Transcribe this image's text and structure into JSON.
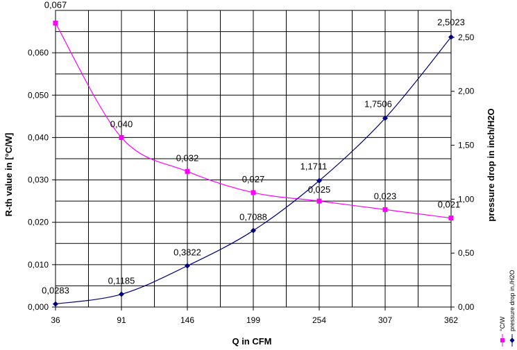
{
  "chart_data": {
    "type": "line",
    "xlabel": "Q in CFM",
    "ylabel_left": "R-th value in [°C/W]",
    "ylabel_right": "pressure drop in inch/H2O",
    "categories": [
      "36",
      "91",
      "146",
      "199",
      "254",
      "307",
      "362"
    ],
    "y_left": {
      "ylim": [
        0,
        0.07
      ],
      "ticks": [
        "0,000",
        "0,010",
        "0,020",
        "0,030",
        "0,040",
        "0,050",
        "0,060"
      ],
      "tick_values": [
        0,
        0.01,
        0.02,
        0.03,
        0.04,
        0.05,
        0.06
      ]
    },
    "y_right": {
      "ylim": [
        0,
        2.75
      ],
      "ticks": [
        "0,00",
        "0,50",
        "1,00",
        "1,50",
        "2,00",
        "2,50"
      ],
      "tick_values": [
        0,
        0.5,
        1.0,
        1.5,
        2.0,
        2.5
      ]
    },
    "grid": true,
    "legend_position": "right",
    "series": [
      {
        "name": "°C/W",
        "axis": "left",
        "color": "#ff00ff",
        "marker": "square",
        "values": [
          0.067,
          0.04,
          0.032,
          0.027,
          0.025,
          0.023,
          0.021
        ],
        "labels": [
          "0,067",
          "0,040",
          "0,032",
          "0,027",
          "0,025",
          "0,023",
          "0,021"
        ]
      },
      {
        "name": "pressure drop in./H2O",
        "axis": "right",
        "color": "#000080",
        "marker": "diamond",
        "values": [
          0.0283,
          0.1185,
          0.3822,
          0.7088,
          1.1711,
          1.7506,
          2.5023
        ],
        "labels": [
          "0,0283",
          "0,1185",
          "0,3822",
          "0,7088",
          "1,1711",
          "1,7506",
          "2,5023"
        ]
      }
    ]
  }
}
